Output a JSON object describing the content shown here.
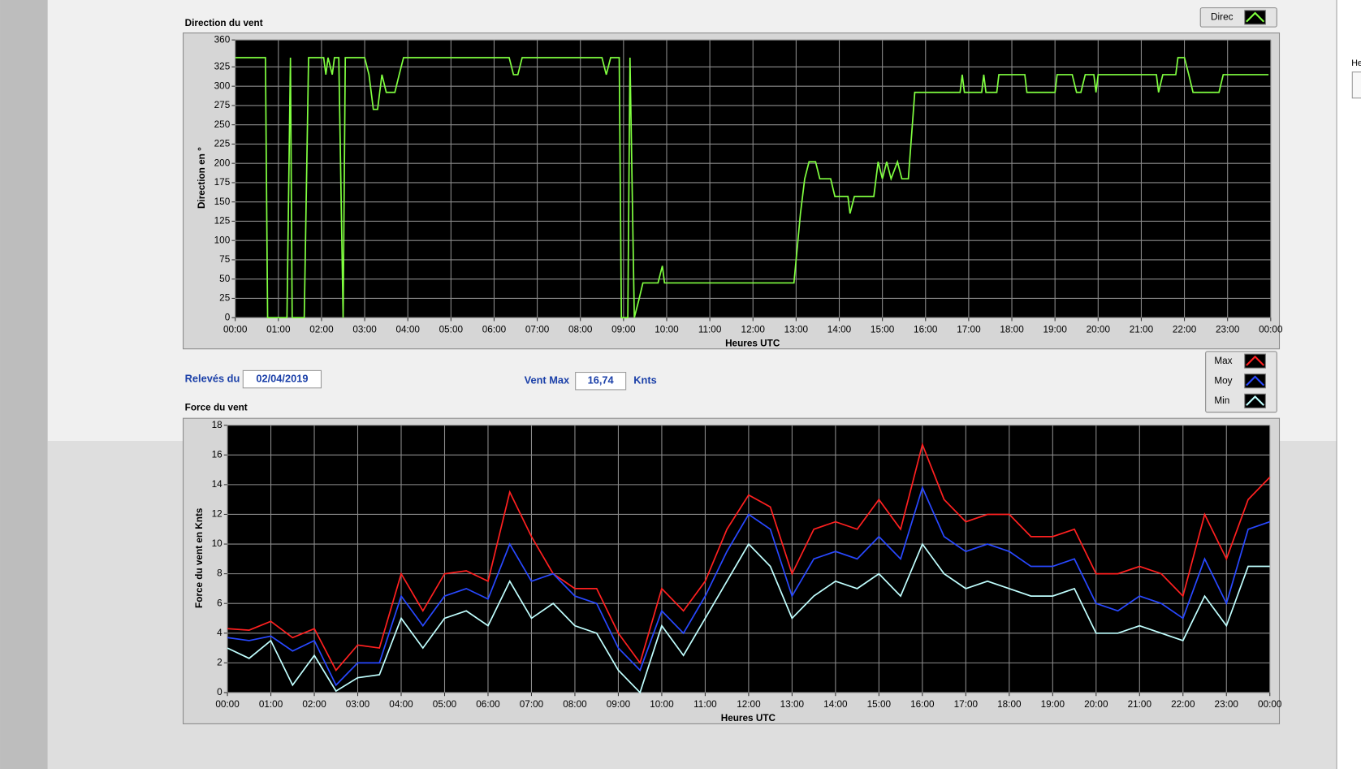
{
  "chart_data": [
    {
      "type": "line",
      "title": "Direction du vent",
      "x_label": "Heures UTC",
      "y_label": "Direction en °",
      "xlim": [
        0,
        24
      ],
      "ylim": [
        0,
        360
      ],
      "xticks": [
        {
          "value": 0,
          "label": "00:00"
        },
        {
          "value": 1,
          "label": "01:00"
        },
        {
          "value": 2,
          "label": "02:00"
        },
        {
          "value": 3,
          "label": "03:00"
        },
        {
          "value": 4,
          "label": "04:00"
        },
        {
          "value": 5,
          "label": "05:00"
        },
        {
          "value": 6,
          "label": "06:00"
        },
        {
          "value": 7,
          "label": "07:00"
        },
        {
          "value": 8,
          "label": "08:00"
        },
        {
          "value": 9,
          "label": "09:00"
        },
        {
          "value": 10,
          "label": "10:00"
        },
        {
          "value": 11,
          "label": "11:00"
        },
        {
          "value": 12,
          "label": "12:00"
        },
        {
          "value": 13,
          "label": "13:00"
        },
        {
          "value": 14,
          "label": "14:00"
        },
        {
          "value": 15,
          "label": "15:00"
        },
        {
          "value": 16,
          "label": "16:00"
        },
        {
          "value": 17,
          "label": "17:00"
        },
        {
          "value": 18,
          "label": "18:00"
        },
        {
          "value": 19,
          "label": "19:00"
        },
        {
          "value": 20,
          "label": "20:00"
        },
        {
          "value": 21,
          "label": "21:00"
        },
        {
          "value": 22,
          "label": "22:00"
        },
        {
          "value": 23,
          "label": "23:00"
        },
        {
          "value": 24,
          "label": "00:00"
        }
      ],
      "yticks": [
        0,
        25,
        50,
        75,
        100,
        125,
        150,
        175,
        200,
        225,
        250,
        275,
        300,
        325,
        360
      ],
      "grid": true,
      "x": [
        0,
        0.7,
        0.75,
        1.2,
        1.28,
        1.32,
        1.6,
        1.7,
        2.05,
        2.1,
        2.15,
        2.25,
        2.3,
        2.4,
        2.5,
        2.55,
        3.0,
        3.1,
        3.2,
        3.3,
        3.4,
        3.5,
        3.7,
        3.8,
        3.9,
        6.35,
        6.45,
        6.55,
        6.65,
        8.5,
        8.6,
        8.7,
        8.9,
        8.95,
        9.1,
        9.15,
        9.25,
        9.35,
        9.45,
        9.8,
        9.9,
        9.95,
        12.95,
        13.1,
        13.2,
        13.3,
        13.45,
        13.55,
        13.8,
        13.9,
        14.2,
        14.25,
        14.35,
        14.8,
        14.9,
        15.0,
        15.1,
        15.2,
        15.35,
        15.45,
        15.6,
        15.75,
        16.8,
        16.85,
        16.9,
        17.3,
        17.35,
        17.4,
        17.65,
        17.7,
        18.3,
        18.35,
        19.0,
        19.05,
        19.4,
        19.5,
        19.6,
        19.7,
        19.9,
        19.95,
        20.0,
        21.35,
        21.4,
        21.5,
        21.8,
        21.85,
        22.0,
        22.1,
        22.2,
        22.8,
        22.9,
        23.95
      ],
      "series": [
        {
          "name": "Direc",
          "color": "#80ff40",
          "values": [
            337,
            337,
            0,
            0,
            337,
            0,
            0,
            337,
            337,
            315,
            337,
            315,
            337,
            337,
            0,
            337,
            337,
            315,
            270,
            270,
            315,
            292,
            292,
            315,
            337,
            337,
            315,
            315,
            337,
            337,
            315,
            337,
            337,
            0,
            0,
            337,
            0,
            22,
            45,
            45,
            67,
            45,
            45,
            135,
            180,
            202,
            202,
            180,
            180,
            157,
            157,
            135,
            157,
            157,
            202,
            180,
            202,
            180,
            202,
            180,
            180,
            292,
            292,
            315,
            292,
            292,
            315,
            292,
            292,
            315,
            315,
            292,
            292,
            315,
            315,
            292,
            292,
            315,
            315,
            292,
            315,
            315,
            292,
            315,
            315,
            337,
            337,
            315,
            292,
            292,
            315,
            315
          ]
        }
      ]
    },
    {
      "type": "line",
      "title": "Force du vent",
      "x_label": "Heures UTC",
      "y_label": "Force du vent en Knts",
      "xlim": [
        0,
        24
      ],
      "ylim": [
        0,
        18
      ],
      "xticks": [
        {
          "value": 0,
          "label": "00:00"
        },
        {
          "value": 1,
          "label": "01:00"
        },
        {
          "value": 2,
          "label": "02:00"
        },
        {
          "value": 3,
          "label": "03:00"
        },
        {
          "value": 4,
          "label": "04:00"
        },
        {
          "value": 5,
          "label": "05:00"
        },
        {
          "value": 6,
          "label": "06:00"
        },
        {
          "value": 7,
          "label": "07:00"
        },
        {
          "value": 8,
          "label": "08:00"
        },
        {
          "value": 9,
          "label": "09:00"
        },
        {
          "value": 10,
          "label": "10:00"
        },
        {
          "value": 11,
          "label": "11:00"
        },
        {
          "value": 12,
          "label": "12:00"
        },
        {
          "value": 13,
          "label": "13:00"
        },
        {
          "value": 14,
          "label": "14:00"
        },
        {
          "value": 15,
          "label": "15:00"
        },
        {
          "value": 16,
          "label": "16:00"
        },
        {
          "value": 17,
          "label": "17:00"
        },
        {
          "value": 18,
          "label": "18:00"
        },
        {
          "value": 19,
          "label": "19:00"
        },
        {
          "value": 20,
          "label": "20:00"
        },
        {
          "value": 21,
          "label": "21:00"
        },
        {
          "value": 22,
          "label": "22:00"
        },
        {
          "value": 23,
          "label": "23:00"
        },
        {
          "value": 24,
          "label": "00:00"
        }
      ],
      "yticks": [
        0,
        2,
        4,
        6,
        8,
        10,
        12,
        14,
        16,
        18
      ],
      "grid": true,
      "x": [
        0,
        0.5,
        1,
        1.5,
        2,
        2.5,
        3,
        3.5,
        4,
        4.5,
        5,
        5.5,
        6,
        6.5,
        7,
        7.5,
        8,
        8.5,
        9,
        9.5,
        10,
        10.5,
        11,
        11.5,
        12,
        12.5,
        13,
        13.5,
        14,
        14.5,
        15,
        15.5,
        16,
        16.5,
        17,
        17.5,
        18,
        18.5,
        19,
        19.5,
        20,
        20.5,
        21,
        21.5,
        22,
        22.5,
        23,
        23.5,
        24
      ],
      "series": [
        {
          "name": "Max",
          "color": "#ff2020",
          "values": [
            4.3,
            4.2,
            4.8,
            3.7,
            4.3,
            1.5,
            3.2,
            3.0,
            8.0,
            5.5,
            8.0,
            8.2,
            7.5,
            13.5,
            10.5,
            8.0,
            7.0,
            7.0,
            4.0,
            2.0,
            7.0,
            5.5,
            7.5,
            11.0,
            13.3,
            12.5,
            8.0,
            11.0,
            11.5,
            11.0,
            13.0,
            11.0,
            16.7,
            13.0,
            11.5,
            12.0,
            12.0,
            10.5,
            10.5,
            11.0,
            8.0,
            8.0,
            8.5,
            8.0,
            6.5,
            12.0,
            9.0,
            13.0,
            14.5
          ]
        },
        {
          "name": "Moy",
          "color": "#2848ff",
          "values": [
            3.7,
            3.5,
            3.8,
            2.8,
            3.5,
            0.5,
            2.0,
            2.0,
            6.5,
            4.5,
            6.5,
            7.0,
            6.3,
            10.0,
            7.5,
            8.0,
            6.5,
            6.0,
            3.0,
            1.5,
            5.5,
            4.0,
            6.5,
            9.5,
            12.0,
            11.0,
            6.5,
            9.0,
            9.5,
            9.0,
            10.5,
            9.0,
            13.8,
            10.5,
            9.5,
            10.0,
            9.5,
            8.5,
            8.5,
            9.0,
            6.0,
            5.5,
            6.5,
            6.0,
            5.0,
            9.0,
            6.0,
            11.0,
            11.5
          ]
        },
        {
          "name": "Min",
          "color": "#c0ffff",
          "values": [
            3.0,
            2.3,
            3.5,
            0.5,
            2.5,
            0.1,
            1.0,
            1.2,
            5.0,
            3.0,
            5.0,
            5.5,
            4.5,
            7.5,
            5.0,
            6.0,
            4.5,
            4.0,
            1.5,
            0,
            4.5,
            2.5,
            5.0,
            7.5,
            10.0,
            8.5,
            5.0,
            6.5,
            7.5,
            7.0,
            8.0,
            6.5,
            10.0,
            8.0,
            7.0,
            7.5,
            7.0,
            6.5,
            6.5,
            7.0,
            4.0,
            4.0,
            4.5,
            4.0,
            3.5,
            6.5,
            4.5,
            8.5,
            8.5
          ]
        }
      ]
    }
  ],
  "form": {
    "releves_label": "Relevés du",
    "date": "02/04/2019",
    "vent_max_label": "Vent Max",
    "vent_max": "16,74",
    "unit": "Knts",
    "side_label": "He"
  }
}
